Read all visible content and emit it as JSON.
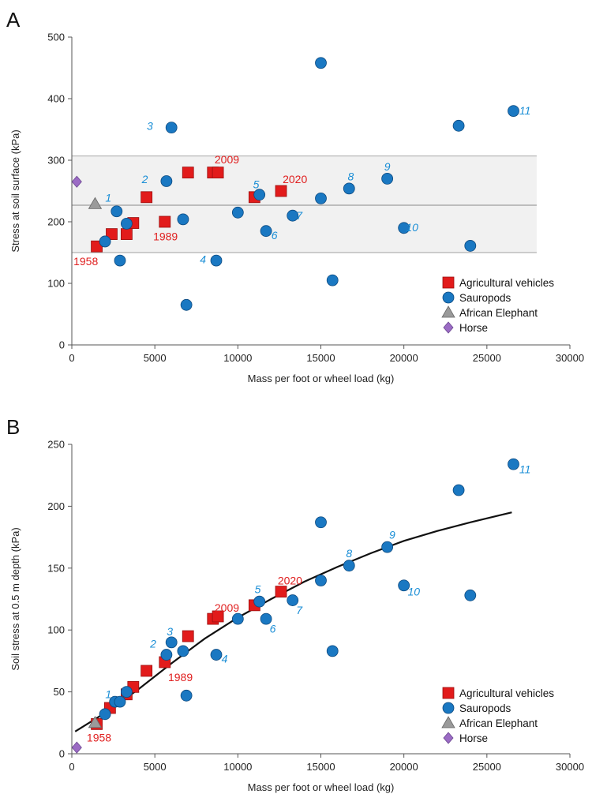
{
  "legend": [
    {
      "key": "agricultural",
      "label": "Agricultural vehicles",
      "color": "#e21b1b",
      "marker": "square"
    },
    {
      "key": "sauropods",
      "label": "Sauropods",
      "color": "#1a78c2",
      "marker": "circle"
    },
    {
      "key": "elephant",
      "label": "African Elephant",
      "color": "#9a9a9a",
      "marker": "triangle"
    },
    {
      "key": "horse",
      "label": "Horse",
      "color": "#9b6bc4",
      "marker": "diamond"
    }
  ],
  "colors": {
    "number_label": "#1a8ed6",
    "year_label": "#e02020",
    "band_fill": "#f1f1f1",
    "band_line": "#bdbdbd"
  },
  "chart_data": [
    {
      "panel": "A",
      "type": "scatter",
      "xlabel": "Mass per foot or wheel load (kg)",
      "ylabel": "Stress at soil surface (kPa)",
      "xlim": [
        0,
        30000
      ],
      "ylim": [
        0,
        500
      ],
      "xticks": [
        0,
        5000,
        10000,
        15000,
        20000,
        25000,
        30000
      ],
      "yticks": [
        0,
        100,
        200,
        300,
        400,
        500
      ],
      "band": {
        "low": 150,
        "mid": 227,
        "high": 307
      },
      "series": [
        {
          "key": "agricultural",
          "points": [
            {
              "x": 1500,
              "y": 160
            },
            {
              "x": 2400,
              "y": 180
            },
            {
              "x": 3300,
              "y": 180
            },
            {
              "x": 3700,
              "y": 198
            },
            {
              "x": 4500,
              "y": 240
            },
            {
              "x": 5600,
              "y": 200
            },
            {
              "x": 7000,
              "y": 280
            },
            {
              "x": 8500,
              "y": 280
            },
            {
              "x": 8800,
              "y": 280
            },
            {
              "x": 11000,
              "y": 240
            },
            {
              "x": 12600,
              "y": 250
            }
          ]
        },
        {
          "key": "sauropods",
          "points": [
            {
              "x": 2000,
              "y": 168
            },
            {
              "x": 2700,
              "y": 217
            },
            {
              "x": 2900,
              "y": 137
            },
            {
              "x": 3300,
              "y": 197
            },
            {
              "x": 5700,
              "y": 266
            },
            {
              "x": 6000,
              "y": 353
            },
            {
              "x": 6700,
              "y": 204
            },
            {
              "x": 6900,
              "y": 65
            },
            {
              "x": 8700,
              "y": 137
            },
            {
              "x": 10000,
              "y": 215
            },
            {
              "x": 11300,
              "y": 244
            },
            {
              "x": 11700,
              "y": 185
            },
            {
              "x": 13300,
              "y": 210
            },
            {
              "x": 15000,
              "y": 458
            },
            {
              "x": 15000,
              "y": 238
            },
            {
              "x": 15700,
              "y": 105
            },
            {
              "x": 16700,
              "y": 254
            },
            {
              "x": 19000,
              "y": 270
            },
            {
              "x": 20000,
              "y": 190
            },
            {
              "x": 23300,
              "y": 356
            },
            {
              "x": 24000,
              "y": 161
            },
            {
              "x": 26600,
              "y": 380
            }
          ]
        },
        {
          "key": "elephant",
          "points": [
            {
              "x": 1400,
              "y": 229
            }
          ]
        },
        {
          "key": "horse",
          "points": [
            {
              "x": 300,
              "y": 265
            }
          ]
        }
      ],
      "number_labels": [
        {
          "text": "1",
          "x": 2200,
          "y": 239
        },
        {
          "x": 4400,
          "y": 269,
          "text": "2"
        },
        {
          "text": "3",
          "x": 4700,
          "y": 356
        },
        {
          "text": "4",
          "x": 7900,
          "y": 139
        },
        {
          "text": "5",
          "x": 11100,
          "y": 261
        },
        {
          "text": "6",
          "x": 12200,
          "y": 178
        },
        {
          "text": "7",
          "x": 13700,
          "y": 210
        },
        {
          "text": "8",
          "x": 16800,
          "y": 274
        },
        {
          "text": "9",
          "x": 19000,
          "y": 290
        },
        {
          "text": "10",
          "x": 20500,
          "y": 191
        },
        {
          "text": "11",
          "x": 27300,
          "y": 381
        }
      ],
      "year_labels": [
        {
          "text": "1958",
          "x": 100,
          "y": 136
        },
        {
          "text": "1989",
          "x": 4900,
          "y": 176
        },
        {
          "text": "2009",
          "x": 8600,
          "y": 301
        },
        {
          "text": "2020",
          "x": 12700,
          "y": 269
        }
      ]
    },
    {
      "panel": "B",
      "type": "scatter",
      "xlabel": "Mass per foot or wheel load (kg)",
      "ylabel": "Soil stress at 0.5 m depth (kPa)",
      "xlim": [
        0,
        30000
      ],
      "ylim": [
        0,
        250
      ],
      "xticks": [
        0,
        5000,
        10000,
        15000,
        20000,
        25000,
        30000
      ],
      "yticks": [
        0,
        50,
        100,
        150,
        200,
        250
      ],
      "fit_curve": [
        {
          "x": 200,
          "y": 18
        },
        {
          "x": 2000,
          "y": 33
        },
        {
          "x": 4000,
          "y": 52
        },
        {
          "x": 6000,
          "y": 73
        },
        {
          "x": 8000,
          "y": 93
        },
        {
          "x": 10000,
          "y": 110
        },
        {
          "x": 12000,
          "y": 125
        },
        {
          "x": 14000,
          "y": 139
        },
        {
          "x": 16000,
          "y": 151
        },
        {
          "x": 18000,
          "y": 162
        },
        {
          "x": 20000,
          "y": 172
        },
        {
          "x": 22000,
          "y": 180
        },
        {
          "x": 24000,
          "y": 187
        },
        {
          "x": 26500,
          "y": 195
        }
      ],
      "series": [
        {
          "key": "agricultural",
          "points": [
            {
              "x": 1500,
              "y": 24
            },
            {
              "x": 2300,
              "y": 37
            },
            {
              "x": 3300,
              "y": 48
            },
            {
              "x": 3700,
              "y": 54
            },
            {
              "x": 4500,
              "y": 67
            },
            {
              "x": 5600,
              "y": 74
            },
            {
              "x": 7000,
              "y": 95
            },
            {
              "x": 8500,
              "y": 109
            },
            {
              "x": 8800,
              "y": 111
            },
            {
              "x": 11000,
              "y": 120
            },
            {
              "x": 12600,
              "y": 131
            }
          ]
        },
        {
          "key": "sauropods",
          "points": [
            {
              "x": 2000,
              "y": 32
            },
            {
              "x": 2600,
              "y": 42
            },
            {
              "x": 2900,
              "y": 42
            },
            {
              "x": 3300,
              "y": 50
            },
            {
              "x": 5700,
              "y": 80
            },
            {
              "x": 6000,
              "y": 90
            },
            {
              "x": 6700,
              "y": 83
            },
            {
              "x": 6900,
              "y": 47
            },
            {
              "x": 8700,
              "y": 80
            },
            {
              "x": 10000,
              "y": 109
            },
            {
              "x": 11300,
              "y": 123
            },
            {
              "x": 11700,
              "y": 109
            },
            {
              "x": 13300,
              "y": 124
            },
            {
              "x": 15000,
              "y": 187
            },
            {
              "x": 15000,
              "y": 140
            },
            {
              "x": 15700,
              "y": 83
            },
            {
              "x": 16700,
              "y": 152
            },
            {
              "x": 19000,
              "y": 167
            },
            {
              "x": 20000,
              "y": 136
            },
            {
              "x": 23300,
              "y": 213
            },
            {
              "x": 24000,
              "y": 128
            },
            {
              "x": 26600,
              "y": 234
            }
          ]
        },
        {
          "key": "elephant",
          "points": [
            {
              "x": 1400,
              "y": 25
            }
          ]
        },
        {
          "key": "horse",
          "points": [
            {
              "x": 300,
              "y": 5
            }
          ]
        }
      ],
      "number_labels": [
        {
          "text": "1",
          "x": 2200,
          "y": 48
        },
        {
          "text": "2",
          "x": 4900,
          "y": 89
        },
        {
          "text": "3",
          "x": 5900,
          "y": 99
        },
        {
          "text": "4",
          "x": 9200,
          "y": 77
        },
        {
          "text": "5",
          "x": 11200,
          "y": 133
        },
        {
          "text": "6",
          "x": 12100,
          "y": 101
        },
        {
          "text": "7",
          "x": 13700,
          "y": 116
        },
        {
          "text": "8",
          "x": 16700,
          "y": 162
        },
        {
          "text": "9",
          "x": 19300,
          "y": 177
        },
        {
          "text": "10",
          "x": 20600,
          "y": 131
        },
        {
          "text": "11",
          "x": 27300,
          "y": 230
        }
      ],
      "year_labels": [
        {
          "text": "1958",
          "x": 900,
          "y": 13
        },
        {
          "text": "1989",
          "x": 5800,
          "y": 62
        },
        {
          "text": "2009",
          "x": 8600,
          "y": 118
        },
        {
          "text": "2020",
          "x": 12400,
          "y": 140
        }
      ]
    }
  ]
}
